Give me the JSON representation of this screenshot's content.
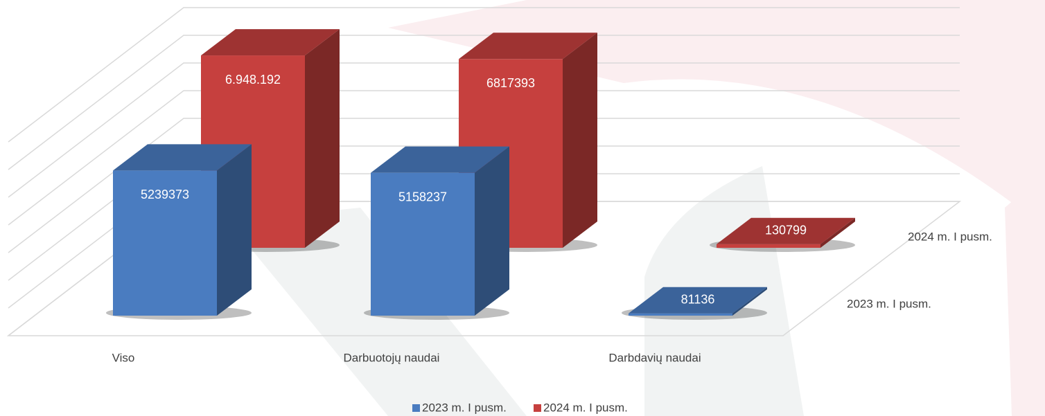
{
  "chart_data": {
    "type": "bar3d",
    "categories": [
      "Viso",
      "Darbuotojų naudai",
      "Darbdavių naudai"
    ],
    "series": [
      {
        "name": "2023 m. I pusm.",
        "color": "#4a7cc0",
        "values": [
          5239373,
          5158237,
          81136
        ]
      },
      {
        "name": "2024 m. I pusm.",
        "color": "#c6403e",
        "values": [
          6948192,
          6817393,
          130799
        ],
        "value_labels": [
          "6.948.192",
          "6817393",
          "130799"
        ]
      }
    ],
    "ylim": [
      0,
      7000000
    ],
    "yticks": [
      0,
      1000000,
      2000000,
      3000000,
      4000000,
      5000000,
      6000000,
      7000000
    ],
    "grid": true,
    "legend": "bottom"
  }
}
